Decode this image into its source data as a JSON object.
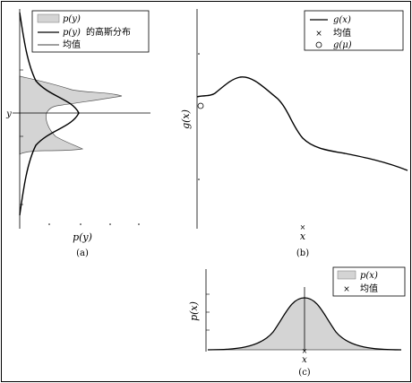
{
  "panel_a": {
    "legend": {
      "entry_1_var": "p(y)",
      "entry_2_var": "p(y)",
      "entry_2_text": "的高斯分布",
      "entry_3_text": "均值"
    },
    "ylabel": "y",
    "xlabel": "p(y)",
    "caption": "(a)"
  },
  "panel_b": {
    "legend": {
      "entry_1": "g(x)",
      "entry_2": "均值",
      "entry_3": "g(μ)"
    },
    "ylabel": "g(x)",
    "xlabel": "x",
    "caption": "(b)"
  },
  "panel_c": {
    "legend": {
      "entry_1": "p(x)",
      "entry_2": "均值"
    },
    "ylabel": "p(x)",
    "xlabel": "x",
    "caption": "(c)"
  },
  "colors": {
    "fill_gray": "#d4d4d4",
    "line": "#000000",
    "frame": "#000000"
  }
}
